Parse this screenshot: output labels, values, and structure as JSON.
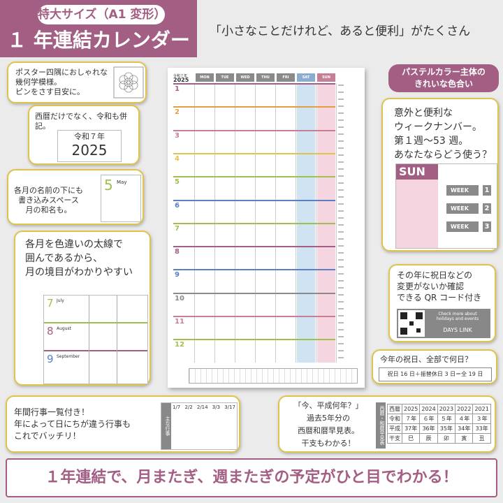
{
  "header": {
    "badge": "特大サイズ（A1 変形）",
    "title": "１ 年連結カレンダー",
    "tagline": "「小さなことだけれど、あると便利」がたくさん"
  },
  "callouts": {
    "corner": "ポスター四隅におしゃれな\n幾何学模様。\nピンをさす目安に。",
    "era": "西暦だけでなく、令和も併記。",
    "era_small": "令和７年",
    "era_year": "2025",
    "month_name": "各月の名前の下にも\n書き込みスペース\n月の和名も。",
    "month_num": "5",
    "month_label": "May",
    "thick_line": "各月を色違いの太線で\n囲んであるから、\n月の境目がわかりやすい",
    "thick_months": [
      {
        "num": "7",
        "name": "July"
      },
      {
        "num": "8",
        "name": "August"
      },
      {
        "num": "9",
        "name": "September"
      }
    ],
    "pastel": "パステルカラー主体の\nきれいな色合い",
    "week_number": "意外と便利な\nウィークナンバー。\n第１週〜53 週。\nあなたならどう使う？",
    "sun_label": "SUN",
    "weeks": [
      {
        "label": "WEEK",
        "num": "1"
      },
      {
        "label": "WEEK",
        "num": "2"
      },
      {
        "label": "WEEK",
        "num": "3"
      }
    ],
    "qr": "その年に祝日などの\n変更がないか確認\nできる QR コード付き",
    "qr_check": "Check more about\nholidays and events",
    "qr_link": "DAYS LINK",
    "holidays_q": "今年の祝日、全部で何日？",
    "holidays_a": "祝日 16 日＋振替休日 3 日＝全 19 日",
    "events": "年間行事一覧付き！\n年によって日にちが違う行事も\nこれでバッチリ！",
    "events_side": "主な行事",
    "events_dates": [
      "1/7",
      "2/2",
      "2/14",
      "3/3",
      "3/17"
    ],
    "era_chart": "「今、平成何年？」\n過去5年分の\n西暦和暦早見表。\n干支もわかる！",
    "era_side": "西暦・和暦早見表"
  },
  "era_table": {
    "head": [
      "西暦",
      "2025",
      "2024",
      "2023",
      "2022",
      "2021"
    ],
    "rows": [
      [
        "令和",
        "７年",
        "６年",
        "５年",
        "４年",
        "３年"
      ],
      [
        "平成",
        "37年",
        "36年",
        "35年",
        "34年",
        "33年"
      ],
      [
        "干支",
        "巳",
        "辰",
        "卯",
        "寅",
        "丑"
      ]
    ]
  },
  "poster": {
    "year_small": "令和７年",
    "year": "2025",
    "days": [
      "MON",
      "TUE",
      "WED",
      "THU",
      "FRI",
      "SAT",
      "SUN"
    ],
    "months": [
      "1",
      "2",
      "3",
      "4",
      "5",
      "6",
      "7",
      "8",
      "9",
      "10",
      "11",
      "12"
    ]
  },
  "footer": "１年連結で、月またぎ、週またぎの予定がひと目でわかる！",
  "colors": {
    "accent": "#a35f83",
    "callout_border": "#e0c34c",
    "sat": "#cfe3f3",
    "sun": "#f5d5df"
  }
}
